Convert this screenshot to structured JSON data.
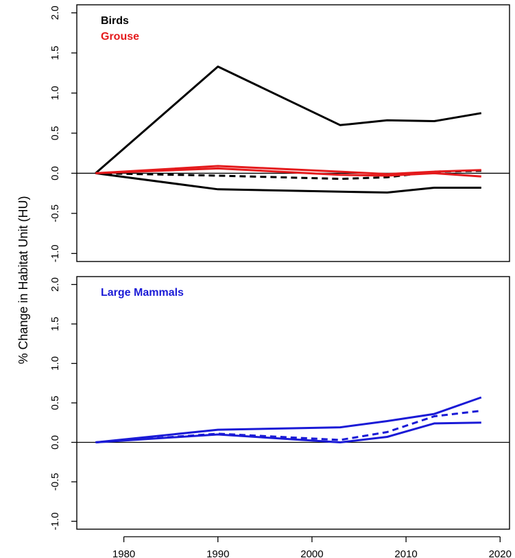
{
  "ylabel": "% Change in Habitat Unit (HU)",
  "chart_data": [
    {
      "type": "line",
      "panel": "top",
      "xlim": [
        1975,
        2021
      ],
      "ylim": [
        -1.1,
        2.1
      ],
      "yticks": [
        -1.0,
        -0.5,
        0.0,
        0.5,
        1.0,
        1.5,
        2.0
      ],
      "ytick_labels": [
        "-1.0",
        "-0.5",
        "0.0",
        "0.5",
        "1.0",
        "1.5",
        "2.0"
      ],
      "xticks": [
        1980,
        1990,
        2000,
        2010,
        2020
      ],
      "xtick_labels": [],
      "show_x_tick_labels": false,
      "legend": [
        {
          "label": "Birds",
          "color": "#000000"
        },
        {
          "label": "Grouse",
          "color": "#e41a1c"
        }
      ],
      "series": [
        {
          "x": [
            1977,
            1990,
            2003,
            2008,
            2013,
            2018
          ],
          "y": [
            0.0,
            1.33,
            0.6,
            0.66,
            0.65,
            0.75
          ],
          "color": "#000000",
          "dash": "solid"
        },
        {
          "x": [
            1977,
            1990,
            2003,
            2008,
            2013,
            2018
          ],
          "y": [
            0.0,
            -0.2,
            -0.23,
            -0.24,
            -0.18,
            -0.18
          ],
          "color": "#000000",
          "dash": "solid"
        },
        {
          "x": [
            1977,
            1990,
            2003,
            2008,
            2013,
            2018
          ],
          "y": [
            0.0,
            -0.03,
            -0.07,
            -0.05,
            0.02,
            0.03
          ],
          "color": "#000000",
          "dash": "dashed"
        },
        {
          "x": [
            1977,
            1990,
            2003,
            2008,
            2013,
            2018
          ],
          "y": [
            0.0,
            0.09,
            0.02,
            -0.01,
            0.02,
            0.04
          ],
          "color": "#e41a1c",
          "dash": "solid"
        },
        {
          "x": [
            1977,
            1990,
            2003,
            2008,
            2013,
            2018
          ],
          "y": [
            0.0,
            0.06,
            -0.02,
            -0.03,
            0.0,
            -0.04
          ],
          "color": "#e41a1c",
          "dash": "solid"
        }
      ]
    },
    {
      "type": "line",
      "panel": "bottom",
      "xlim": [
        1975,
        2021
      ],
      "ylim": [
        -1.1,
        2.1
      ],
      "yticks": [
        -1.0,
        -0.5,
        0.0,
        0.5,
        1.0,
        1.5,
        2.0
      ],
      "ytick_labels": [
        "-1.0",
        "-0.5",
        "0.0",
        "0.5",
        "1.0",
        "1.5",
        "2.0"
      ],
      "xticks": [
        1980,
        1990,
        2000,
        2010,
        2020
      ],
      "xtick_labels": [
        "1980",
        "1990",
        "2000",
        "2010",
        "2020"
      ],
      "show_x_tick_labels": true,
      "legend": [
        {
          "label": "Large Mammals",
          "color": "#1a1ad6"
        }
      ],
      "series": [
        {
          "x": [
            1977,
            1990,
            2003,
            2008,
            2013,
            2018
          ],
          "y": [
            0.0,
            0.16,
            0.19,
            0.27,
            0.36,
            0.57
          ],
          "color": "#1a1ad6",
          "dash": "solid"
        },
        {
          "x": [
            1977,
            1990,
            2003,
            2008,
            2013,
            2018
          ],
          "y": [
            0.0,
            0.1,
            0.0,
            0.07,
            0.24,
            0.25
          ],
          "color": "#1a1ad6",
          "dash": "solid"
        },
        {
          "x": [
            1977,
            1990,
            2003,
            2008,
            2013,
            2018
          ],
          "y": [
            0.0,
            0.11,
            0.03,
            0.13,
            0.33,
            0.4
          ],
          "color": "#1a1ad6",
          "dash": "dashed"
        }
      ]
    }
  ]
}
